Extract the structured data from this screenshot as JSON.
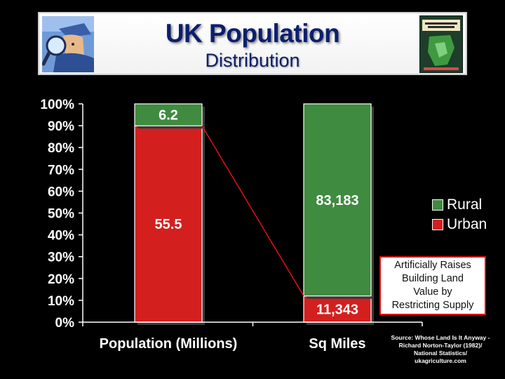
{
  "header": {
    "title": "UK Population",
    "subtitle": "Distribution",
    "left_icon": "detective-magnifier-icon",
    "right_icon": "book-cover-icon"
  },
  "colors": {
    "urban": "#d41f1f",
    "rural": "#3f8b3f",
    "connector": "#e01010",
    "background": "#000000"
  },
  "chart_data": {
    "type": "bar",
    "stacked": true,
    "normalized": true,
    "categories": [
      "Population (Millions)",
      "Sq Miles"
    ],
    "series": [
      {
        "name": "Urban",
        "values": [
          55.5,
          11343
        ],
        "labels": [
          "55.5",
          "11,343"
        ]
      },
      {
        "name": "Rural",
        "values": [
          6.2,
          83183
        ],
        "labels": [
          "6.2",
          "83,183"
        ]
      }
    ],
    "y_ticks": [
      "0%",
      "10%",
      "20%",
      "30%",
      "40%",
      "50%",
      "60%",
      "70%",
      "80%",
      "90%",
      "100%"
    ],
    "ylim": [
      0,
      100
    ],
    "legend_position": "right",
    "grid": false
  },
  "legend": [
    {
      "label": "Rural",
      "color": "#3f8b3f"
    },
    {
      "label": "Urban",
      "color": "#d41f1f"
    }
  ],
  "annotation": {
    "lines": [
      "Artificially Raises",
      "Building Land",
      "Value by",
      "Restricting Supply"
    ]
  },
  "source": {
    "lines": [
      "Source: Whose Land Is It Anyway -",
      "Richard Norton-Taylor (1982)/",
      "National Statistics/",
      "ukagriculture.com"
    ]
  }
}
